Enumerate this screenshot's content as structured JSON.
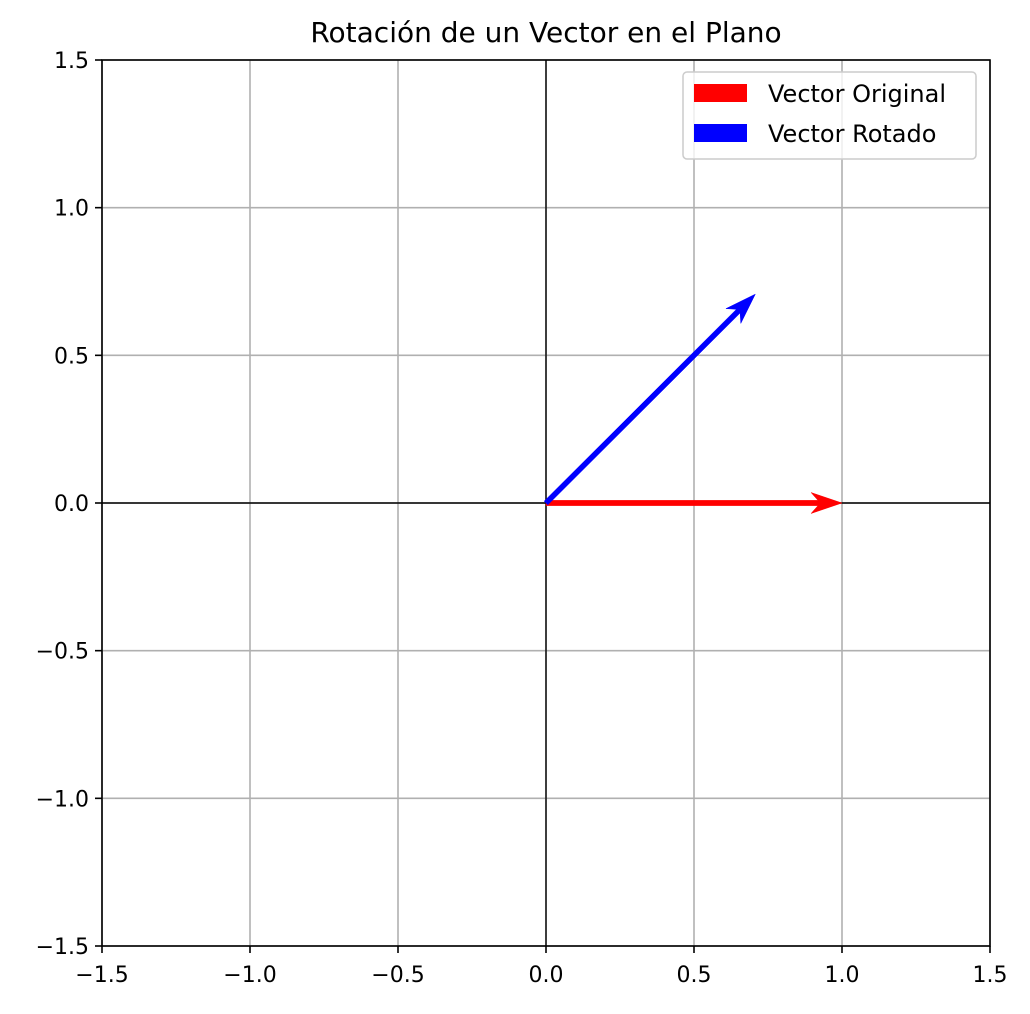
{
  "chart_data": {
    "type": "quiver",
    "title": "Rotación de un Vector en el Plano",
    "xlabel": "",
    "ylabel": "",
    "xlim": [
      -1.5,
      1.5
    ],
    "ylim": [
      -1.5,
      1.5
    ],
    "x_ticks": [
      "−1.5",
      "−1.0",
      "−0.5",
      "0.0",
      "0.5",
      "1.0",
      "1.5"
    ],
    "y_ticks": [
      "−1.5",
      "−1.0",
      "−0.5",
      "0.0",
      "0.5",
      "1.0",
      "1.5"
    ],
    "x_tick_values": [
      -1.5,
      -1.0,
      -0.5,
      0.0,
      0.5,
      1.0,
      1.5
    ],
    "y_tick_values": [
      -1.5,
      -1.0,
      -0.5,
      0.0,
      0.5,
      1.0,
      1.5
    ],
    "grid": true,
    "origin_axes_lines": true,
    "legend_position": "top-right",
    "series": [
      {
        "name": "Vector Original",
        "color": "#ff0000",
        "start": [
          0,
          0
        ],
        "end": [
          1.0,
          0.0
        ]
      },
      {
        "name": "Vector Rotado",
        "color": "#0000ff",
        "start": [
          0,
          0
        ],
        "end": [
          0.7071,
          0.7071
        ]
      }
    ]
  }
}
